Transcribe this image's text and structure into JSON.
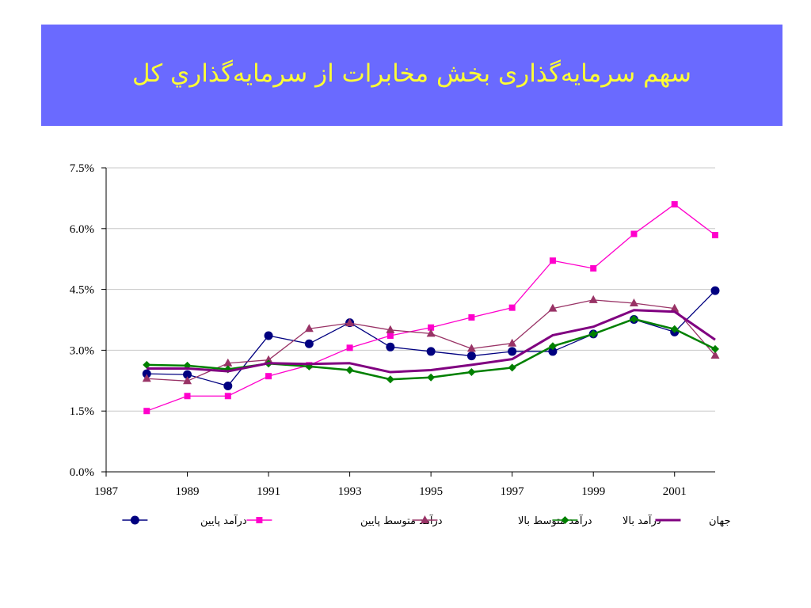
{
  "slide": {
    "title": "سهم سرمايه‌گذاری بخش مخابرات از سرمايه‌گذاري كل",
    "banner_color": "#6a6aff",
    "title_color": "#ffff33"
  },
  "chart_data": {
    "type": "line",
    "title": "",
    "xlabel": "",
    "ylabel": "",
    "x": [
      1988,
      1989,
      1990,
      1991,
      1992,
      1993,
      1994,
      1995,
      1996,
      1997,
      1998,
      1999,
      2000,
      2001,
      2002
    ],
    "xlim": [
      1987,
      2002
    ],
    "ylim": [
      0,
      7.5
    ],
    "x_ticks": [
      "1987",
      "1989",
      "1991",
      "1993",
      "1995",
      "1997",
      "1999",
      "2001"
    ],
    "y_ticks": [
      "0.0%",
      "1.5%",
      "3.0%",
      "4.5%",
      "6.0%",
      "7.5%"
    ],
    "grid": "horizontal",
    "legend_position": "bottom",
    "series": [
      {
        "name": "درآمد پايين",
        "color": "#000080",
        "marker": "circle",
        "values": [
          2.42,
          2.4,
          2.12,
          3.36,
          3.16,
          3.68,
          3.08,
          2.97,
          2.86,
          2.97,
          2.97,
          3.4,
          3.76,
          3.45,
          4.47
        ]
      },
      {
        "name": "درآمد متوسط پايين",
        "color": "#ff00cc",
        "marker": "square",
        "values": [
          1.5,
          1.87,
          1.87,
          2.36,
          2.63,
          3.06,
          3.36,
          3.56,
          3.81,
          4.05,
          5.21,
          5.02,
          5.87,
          6.6,
          5.84
        ]
      },
      {
        "name": "درآمد متوسط بالا",
        "color": "#993366",
        "marker": "triangle",
        "values": [
          2.3,
          2.24,
          2.68,
          2.76,
          3.53,
          3.67,
          3.5,
          3.41,
          3.04,
          3.17,
          4.03,
          4.24,
          4.16,
          4.03,
          2.87
        ]
      },
      {
        "name": "درآمد بالا",
        "color": "#008000",
        "marker": "diamond",
        "values": [
          2.64,
          2.62,
          2.53,
          2.67,
          2.6,
          2.51,
          2.28,
          2.33,
          2.46,
          2.57,
          3.1,
          3.4,
          3.77,
          3.52,
          3.03
        ]
      },
      {
        "name": "جهان",
        "color": "#800080",
        "marker": "none",
        "values": [
          2.55,
          2.55,
          2.48,
          2.68,
          2.66,
          2.68,
          2.46,
          2.51,
          2.64,
          2.78,
          3.37,
          3.58,
          3.99,
          3.95,
          3.26
        ]
      }
    ]
  }
}
